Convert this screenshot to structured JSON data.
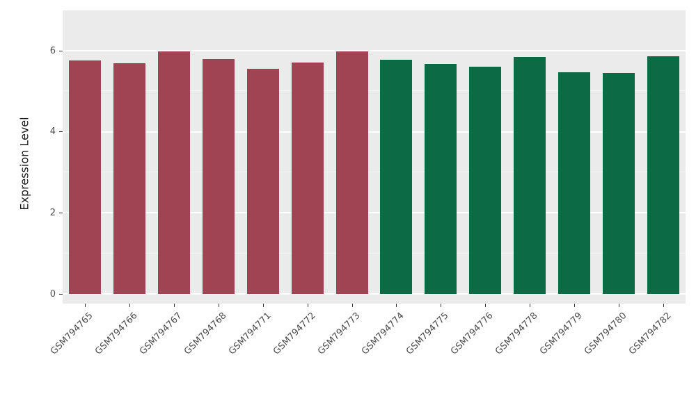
{
  "chart_data": {
    "type": "bar",
    "title": "",
    "xlabel": "",
    "ylabel": "Expression Level",
    "categories": [
      "GSM794765",
      "GSM794766",
      "GSM794767",
      "GSM794768",
      "GSM794771",
      "GSM794772",
      "GSM794773",
      "GSM794774",
      "GSM794775",
      "GSM794776",
      "GSM794778",
      "GSM794779",
      "GSM794780",
      "GSM794782"
    ],
    "values": [
      5.76,
      5.69,
      5.99,
      5.8,
      5.56,
      5.71,
      5.99,
      5.78,
      5.68,
      5.6,
      5.85,
      5.47,
      5.45,
      5.87
    ],
    "bar_colors": [
      "#a04352",
      "#a04352",
      "#a04352",
      "#a04352",
      "#a04352",
      "#a04352",
      "#a04352",
      "#0c6b45",
      "#0c6b45",
      "#0c6b45",
      "#0c6b45",
      "#0c6b45",
      "#0c6b45",
      "#0c6b45"
    ],
    "group_palette": {
      "group1": "#a04352",
      "group2": "#0c6b45"
    },
    "ylim": [
      0,
      7
    ],
    "yticks": [
      0,
      2,
      4,
      6
    ],
    "minor_ticks": [
      1,
      3,
      5
    ],
    "legend_position": "none",
    "panel_background": "#ebebeb",
    "grid_major_color": "#ffffff",
    "grid_minor_color": "#f5f5f5",
    "tick_label_color": "#4d4d4d",
    "axis_title_color": "#1a1a1a"
  }
}
